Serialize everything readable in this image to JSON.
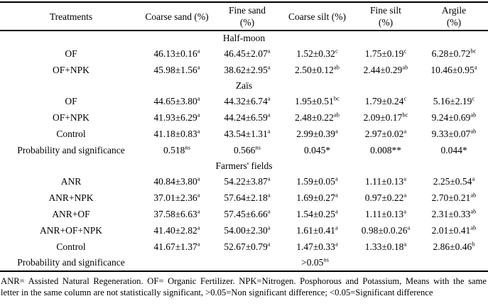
{
  "table": {
    "columns": [
      [
        "Treatments"
      ],
      [
        "Coarse sand (%)"
      ],
      [
        "Fine sand",
        "(%)"
      ],
      [
        "Coarse silt (%)"
      ],
      [
        "Fine silt",
        "(%)"
      ],
      [
        "Argile",
        "(%)"
      ]
    ],
    "sections": [
      {
        "name": "Half-moon",
        "rows": [
          {
            "treatment": "OF",
            "cells": [
              [
                "46.13±0.16",
                "a"
              ],
              [
                "46.45±2.07",
                "a"
              ],
              [
                "1.52±0.32",
                "c"
              ],
              [
                "1.75±0.19",
                "c"
              ],
              [
                "6.28±0.72",
                "bc"
              ]
            ]
          },
          {
            "treatment": "OF+NPK",
            "cells": [
              [
                "45.98±1.56",
                "a"
              ],
              [
                "38.62±2.95",
                "a"
              ],
              [
                "2.50±0.12",
                "ab"
              ],
              [
                "2.44±0.29",
                "ab"
              ],
              [
                "10.46±0.95",
                "a"
              ]
            ]
          }
        ]
      },
      {
        "name": "Zaïs",
        "rows": [
          {
            "treatment": "OF",
            "cells": [
              [
                "44.65±3.80",
                "a"
              ],
              [
                "44.32±6.74",
                "a"
              ],
              [
                "1.95±0.51",
                "bc"
              ],
              [
                "1.79±0.24",
                "c"
              ],
              [
                "5.16±2.19",
                "c"
              ]
            ]
          },
          {
            "treatment": "OF+NPK",
            "cells": [
              [
                "41.93±6.29",
                "a"
              ],
              [
                "44.24±6.59",
                "a"
              ],
              [
                "2.48±0.22",
                "ab"
              ],
              [
                "2.09±0.17",
                "bc"
              ],
              [
                "9.24±0.69",
                "ab"
              ]
            ]
          },
          {
            "treatment": "Control",
            "cells": [
              [
                "41.18±0.83",
                "a"
              ],
              [
                "43.54±1.31",
                "a"
              ],
              [
                "2.99±0.39",
                "a"
              ],
              [
                "2.97±0.02",
                "a"
              ],
              [
                "9.33±0.07",
                "ab"
              ]
            ]
          },
          {
            "treatment": "Probability and significance",
            "cells": [
              [
                "0.518",
                "ns"
              ],
              [
                "0.566",
                "ns"
              ],
              [
                "0.045*",
                ""
              ],
              [
                "0.008**",
                ""
              ],
              [
                "0.044*",
                ""
              ]
            ]
          }
        ]
      },
      {
        "name": "Farmers' fields",
        "rows": [
          {
            "treatment": "ANR",
            "cells": [
              [
                "40.84±3.80",
                "a"
              ],
              [
                "54.22±3.87",
                "a"
              ],
              [
                "1.59±0.05",
                "a"
              ],
              [
                "1.11±0.13",
                "a"
              ],
              [
                "2.25±0.54",
                "a"
              ]
            ]
          },
          {
            "treatment": "ANR+NPK",
            "cells": [
              [
                "37.01±2.36",
                "a"
              ],
              [
                "57.64±2.18",
                "a"
              ],
              [
                "1.69±0.27",
                "a"
              ],
              [
                "0.97±0.22",
                "a"
              ],
              [
                "2.70±0.21",
                "ab"
              ]
            ]
          },
          {
            "treatment": "ANR+OF",
            "cells": [
              [
                "37.58±6.63",
                "a"
              ],
              [
                "57.45±6.66",
                "a"
              ],
              [
                "1.54±0.25",
                "a"
              ],
              [
                "1.11±0.13",
                "a"
              ],
              [
                "2.31±0.33",
                "ab"
              ]
            ]
          },
          {
            "treatment": "ANR+OF+NPK",
            "cells": [
              [
                "41.40±2.82",
                "a"
              ],
              [
                "54.00±2.30",
                "a"
              ],
              [
                "1.61±0.41",
                "a"
              ],
              [
                "0.98±0.0.26",
                "a"
              ],
              [
                "2.01±0.41",
                "ab"
              ]
            ]
          },
          {
            "treatment": "Control",
            "cells": [
              [
                "41.67±1.37",
                "a"
              ],
              [
                "52.67±0.79",
                "a"
              ],
              [
                "1.47±0.33",
                "a"
              ],
              [
                "1.33±0.18",
                "a"
              ],
              [
                "2.86±0.46",
                "b"
              ]
            ]
          },
          {
            "treatment": "Probability and significance",
            "merged": ">0.05",
            "merged_sup": "ns"
          }
        ]
      }
    ]
  },
  "footnote": {
    "line1": "ANR= Assisted Natural Regeneration. OF= Organic Fertilizer.  NPK=Nitrogen.  Posphorous and Potassium, Means with the same",
    "line2": "letter in the same column are not statistically significant, >0.05=Non significant difference; <0.05=Significant difference"
  }
}
